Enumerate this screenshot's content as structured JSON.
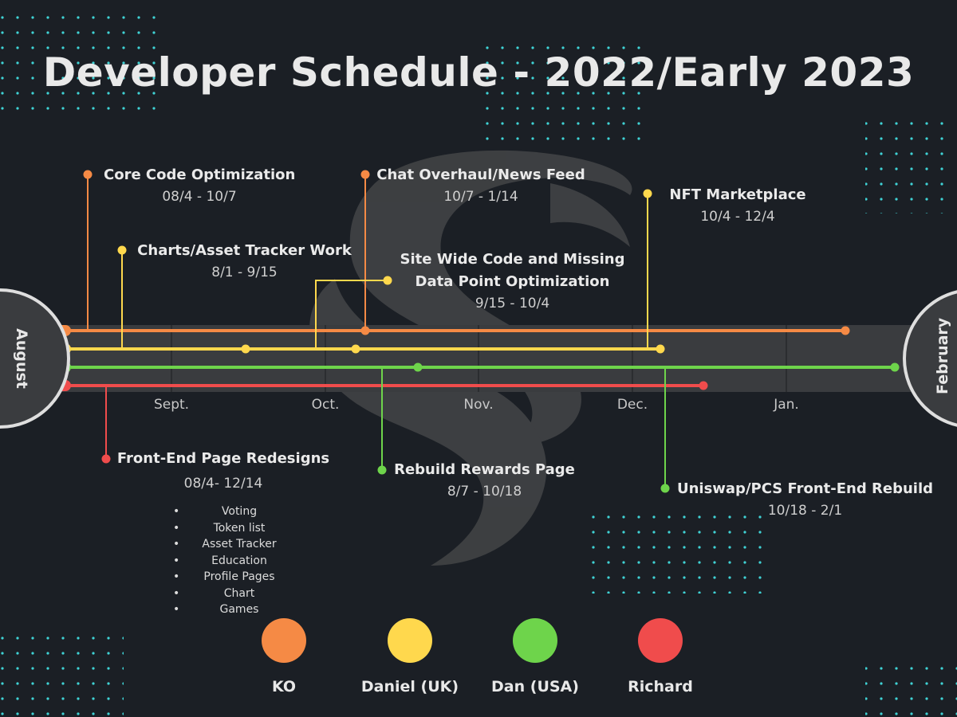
{
  "title": "Developer Schedule - 2022/Early 2023",
  "start_month": "August",
  "end_month": "February",
  "months": [
    "Sept.",
    "Oct.",
    "Nov.",
    "Dec.",
    "Jan."
  ],
  "colors": {
    "background": "#1b1f25",
    "ko": "#f58a45",
    "daniel": "#ffd84d",
    "dan": "#6ed44b",
    "richard": "#f04c4c",
    "track": "#3a3c3f",
    "dots": "#3fd3d6"
  },
  "tasks": {
    "core_code": {
      "title": "Core Code Optimization",
      "dates": "08/4 - 10/7"
    },
    "chat_overhaul": {
      "title": "Chat Overhaul/News Feed",
      "dates": "10/7 - 1/14"
    },
    "nft_marketplace": {
      "title": "NFT Marketplace",
      "dates": "10/4 - 12/4"
    },
    "charts_asset": {
      "title": "Charts/Asset Tracker Work",
      "dates": "8/1 - 9/15"
    },
    "site_wide": {
      "title_line1": "Site Wide Code and Missing",
      "title_line2": "Data Point Optimization",
      "dates": "9/15 - 10/4"
    },
    "front_end": {
      "title": "Front-End Page Redesigns",
      "dates": "08/4- 12/14",
      "items": [
        "Voting",
        "Token list",
        "Asset Tracker",
        "Education",
        "Profile Pages",
        "Chart",
        "Games"
      ]
    },
    "rebuild_rewards": {
      "title": "Rebuild Rewards Page",
      "dates": "8/7 - 10/18"
    },
    "uniswap": {
      "title": "Uniswap/PCS Front-End Rebuild",
      "dates": "10/18 - 2/1"
    }
  },
  "legend": [
    {
      "name": "KO",
      "color": "#f58a45"
    },
    {
      "name": "Daniel (UK)",
      "color": "#ffd84d"
    },
    {
      "name": "Dan (USA)",
      "color": "#6ed44b"
    },
    {
      "name": "Richard",
      "color": "#f04c4c"
    }
  ]
}
